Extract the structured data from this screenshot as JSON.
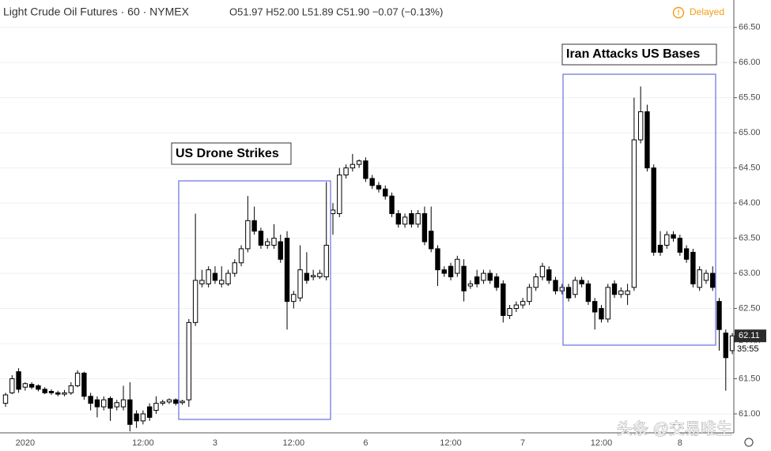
{
  "chart_data": {
    "type": "candlestick",
    "title": "Light Crude Oil Futures · 60 · NYMEX",
    "ohlc_text": "O51.97 H52.00 L51.89 C51.90 −0.07 (−0.13%)",
    "status": "Delayed",
    "annotations": [
      "US Drone Strikes",
      "Iran Attacks US Bases"
    ],
    "last_price": 62.11,
    "countdown": "35:55",
    "watermark": "头条 @交易唯生",
    "up_color": "#ffffff",
    "down_color": "#000000",
    "grid": true,
    "ylim": [
      60.73,
      66.89
    ],
    "yticks": [
      {
        "value": 61,
        "label": "61.00"
      },
      {
        "value": 61.5,
        "label": "61.50"
      },
      {
        "value": 62,
        "label": "62.00"
      },
      {
        "value": 62.5,
        "label": "62.50"
      },
      {
        "value": 63,
        "label": "63.00"
      },
      {
        "value": 63.5,
        "label": "63.50"
      },
      {
        "value": 64,
        "label": "64.00"
      },
      {
        "value": 64.5,
        "label": "64.50"
      },
      {
        "value": 65,
        "label": "65.00"
      },
      {
        "value": 65.5,
        "label": "65.50"
      },
      {
        "value": 66,
        "label": "66.00"
      },
      {
        "value": 66.5,
        "label": "66.50"
      }
    ],
    "categories": [
      null,
      null,
      null,
      "2020",
      null,
      null,
      null,
      null,
      null,
      null,
      null,
      null,
      null,
      null,
      null,
      null,
      null,
      null,
      null,
      null,
      null,
      "12:00",
      null,
      null,
      null,
      null,
      null,
      null,
      null,
      null,
      null,
      null,
      "3",
      null,
      null,
      null,
      null,
      null,
      null,
      null,
      null,
      null,
      null,
      null,
      "12:00",
      null,
      null,
      null,
      null,
      null,
      null,
      null,
      null,
      null,
      null,
      "6",
      null,
      null,
      null,
      null,
      null,
      null,
      null,
      null,
      null,
      null,
      null,
      null,
      "12:00",
      null,
      null,
      null,
      null,
      null,
      null,
      null,
      null,
      null,
      null,
      "7",
      null,
      null,
      null,
      null,
      null,
      null,
      null,
      null,
      null,
      null,
      null,
      "12:00",
      null,
      null,
      null,
      null,
      null,
      null,
      null,
      null,
      null,
      null,
      null,
      "8",
      null,
      null,
      null,
      null,
      null,
      null,
      null,
      null
    ],
    "open": [
      61.15,
      61.3,
      61.6,
      61.38,
      61.42,
      61.4,
      61.35,
      61.32,
      61.3,
      61.28,
      61.3,
      61.4,
      61.58,
      61.25,
      61.2,
      61.1,
      61.22,
      61.1,
      61.1,
      61.2,
      61.0,
      60.9,
      61.1,
      61.05,
      61.15,
      61.17,
      61.2,
      61.16,
      61.2,
      62.3,
      62.85,
      62.85,
      63.0,
      62.85,
      62.85,
      63.0,
      63.15,
      63.35,
      63.75,
      63.6,
      63.4,
      63.4,
      63.45,
      63.5,
      62.6,
      62.65,
      63.0,
      62.95,
      62.95,
      62.95,
      63.85,
      63.85,
      64.4,
      64.5,
      64.55,
      64.6,
      64.35,
      64.25,
      64.2,
      64.1,
      63.85,
      63.7,
      63.85,
      63.7,
      63.85,
      63.6,
      63.35,
      63.05,
      63.1,
      63.0,
      63.1,
      62.82,
      62.95,
      62.9,
      63.0,
      62.95,
      62.85,
      62.4,
      62.5,
      62.55,
      62.6,
      62.8,
      62.95,
      63.05,
      62.9,
      62.75,
      62.8,
      62.7,
      62.9,
      62.85,
      62.6,
      62.5,
      62.35,
      62.85,
      62.7,
      62.7,
      62.8,
      64.9,
      65.3,
      64.5,
      63.4,
      63.4,
      63.55,
      63.5,
      63.35,
      63.3,
      62.8,
      62.9,
      63.0,
      62.6,
      62.15,
      61.9
    ],
    "high": [
      61.3,
      61.55,
      61.65,
      61.45,
      61.45,
      61.42,
      61.38,
      61.35,
      61.33,
      61.34,
      61.45,
      61.62,
      61.6,
      61.3,
      61.25,
      61.25,
      61.25,
      61.2,
      61.4,
      61.45,
      61.05,
      61.05,
      61.15,
      61.25,
      61.2,
      61.22,
      61.22,
      61.2,
      62.35,
      63.85,
      63.05,
      63.1,
      63.1,
      63.1,
      63.05,
      63.2,
      63.4,
      64.1,
      63.95,
      63.65,
      63.5,
      63.7,
      63.55,
      63.6,
      62.75,
      63.4,
      63.3,
      63.05,
      63.05,
      64.3,
      64.0,
      64.5,
      64.55,
      64.7,
      64.62,
      64.65,
      64.4,
      64.3,
      64.25,
      64.15,
      63.9,
      63.85,
      63.9,
      63.9,
      63.95,
      63.95,
      63.4,
      63.1,
      63.15,
      63.25,
      63.2,
      62.9,
      63.05,
      63.05,
      63.05,
      63.0,
      62.9,
      62.55,
      62.6,
      62.65,
      62.85,
      63.0,
      63.15,
      63.1,
      62.95,
      62.85,
      62.85,
      62.95,
      62.95,
      62.9,
      62.65,
      62.55,
      62.85,
      62.9,
      62.8,
      62.85,
      65.5,
      65.66,
      65.4,
      64.55,
      63.6,
      63.6,
      63.6,
      63.55,
      63.4,
      63.35,
      63.1,
      63.05,
      63.1,
      62.65,
      62.2,
      62.15
    ],
    "low": [
      61.1,
      61.28,
      61.3,
      61.33,
      61.35,
      61.32,
      61.28,
      61.27,
      61.25,
      61.25,
      61.27,
      61.38,
      61.2,
      61.05,
      60.95,
      61.05,
      60.9,
      61.05,
      61.05,
      60.75,
      60.8,
      60.85,
      60.9,
      61.0,
      61.12,
      61.14,
      61.12,
      61.13,
      61.1,
      62.25,
      62.8,
      62.8,
      62.85,
      62.8,
      62.82,
      62.95,
      63.1,
      63.3,
      63.55,
      63.35,
      63.35,
      63.35,
      63.15,
      62.2,
      62.5,
      62.6,
      62.85,
      62.9,
      62.92,
      62.9,
      63.55,
      63.8,
      64.35,
      64.45,
      64.5,
      64.3,
      64.2,
      64.15,
      64.05,
      63.8,
      63.65,
      63.65,
      63.65,
      63.65,
      63.4,
      63.3,
      62.82,
      62.95,
      62.9,
      62.95,
      62.6,
      62.78,
      62.8,
      62.85,
      62.85,
      62.75,
      62.3,
      62.35,
      62.45,
      62.5,
      62.55,
      62.75,
      62.9,
      62.85,
      62.7,
      62.7,
      62.6,
      62.65,
      62.8,
      62.55,
      62.2,
      62.3,
      62.3,
      62.65,
      62.65,
      62.55,
      62.75,
      64.85,
      64.45,
      63.25,
      63.25,
      63.35,
      63.45,
      63.25,
      63.15,
      62.8,
      62.75,
      62.85,
      62.75,
      61.9,
      61.33,
      61.85
    ],
    "close": [
      61.27,
      61.5,
      61.35,
      61.43,
      61.38,
      61.35,
      61.3,
      61.3,
      61.28,
      61.3,
      61.4,
      61.58,
      61.25,
      61.15,
      61.1,
      61.2,
      61.08,
      61.16,
      61.2,
      60.85,
      60.9,
      61.0,
      60.95,
      61.15,
      61.17,
      61.2,
      61.15,
      61.18,
      62.3,
      62.9,
      62.9,
      63.05,
      62.9,
      62.9,
      63.0,
      63.15,
      63.35,
      63.75,
      63.6,
      63.4,
      63.45,
      63.5,
      63.2,
      62.6,
      62.7,
      63.05,
      62.9,
      62.97,
      63.0,
      63.4,
      63.9,
      64.4,
      64.5,
      64.55,
      64.6,
      64.35,
      64.25,
      64.2,
      64.1,
      63.85,
      63.7,
      63.8,
      63.7,
      63.85,
      63.45,
      63.35,
      63.05,
      63.0,
      62.95,
      63.2,
      62.75,
      62.85,
      62.85,
      63.0,
      62.9,
      62.8,
      62.4,
      62.5,
      62.55,
      62.6,
      62.8,
      62.95,
      63.1,
      62.9,
      62.75,
      62.8,
      62.65,
      62.9,
      62.85,
      62.6,
      62.45,
      62.35,
      62.8,
      62.7,
      62.75,
      62.75,
      64.9,
      65.3,
      64.5,
      63.3,
      63.3,
      63.55,
      63.5,
      63.3,
      63.2,
      62.85,
      63.05,
      63.0,
      62.8,
      62.2,
      61.8,
      62.11
    ]
  }
}
